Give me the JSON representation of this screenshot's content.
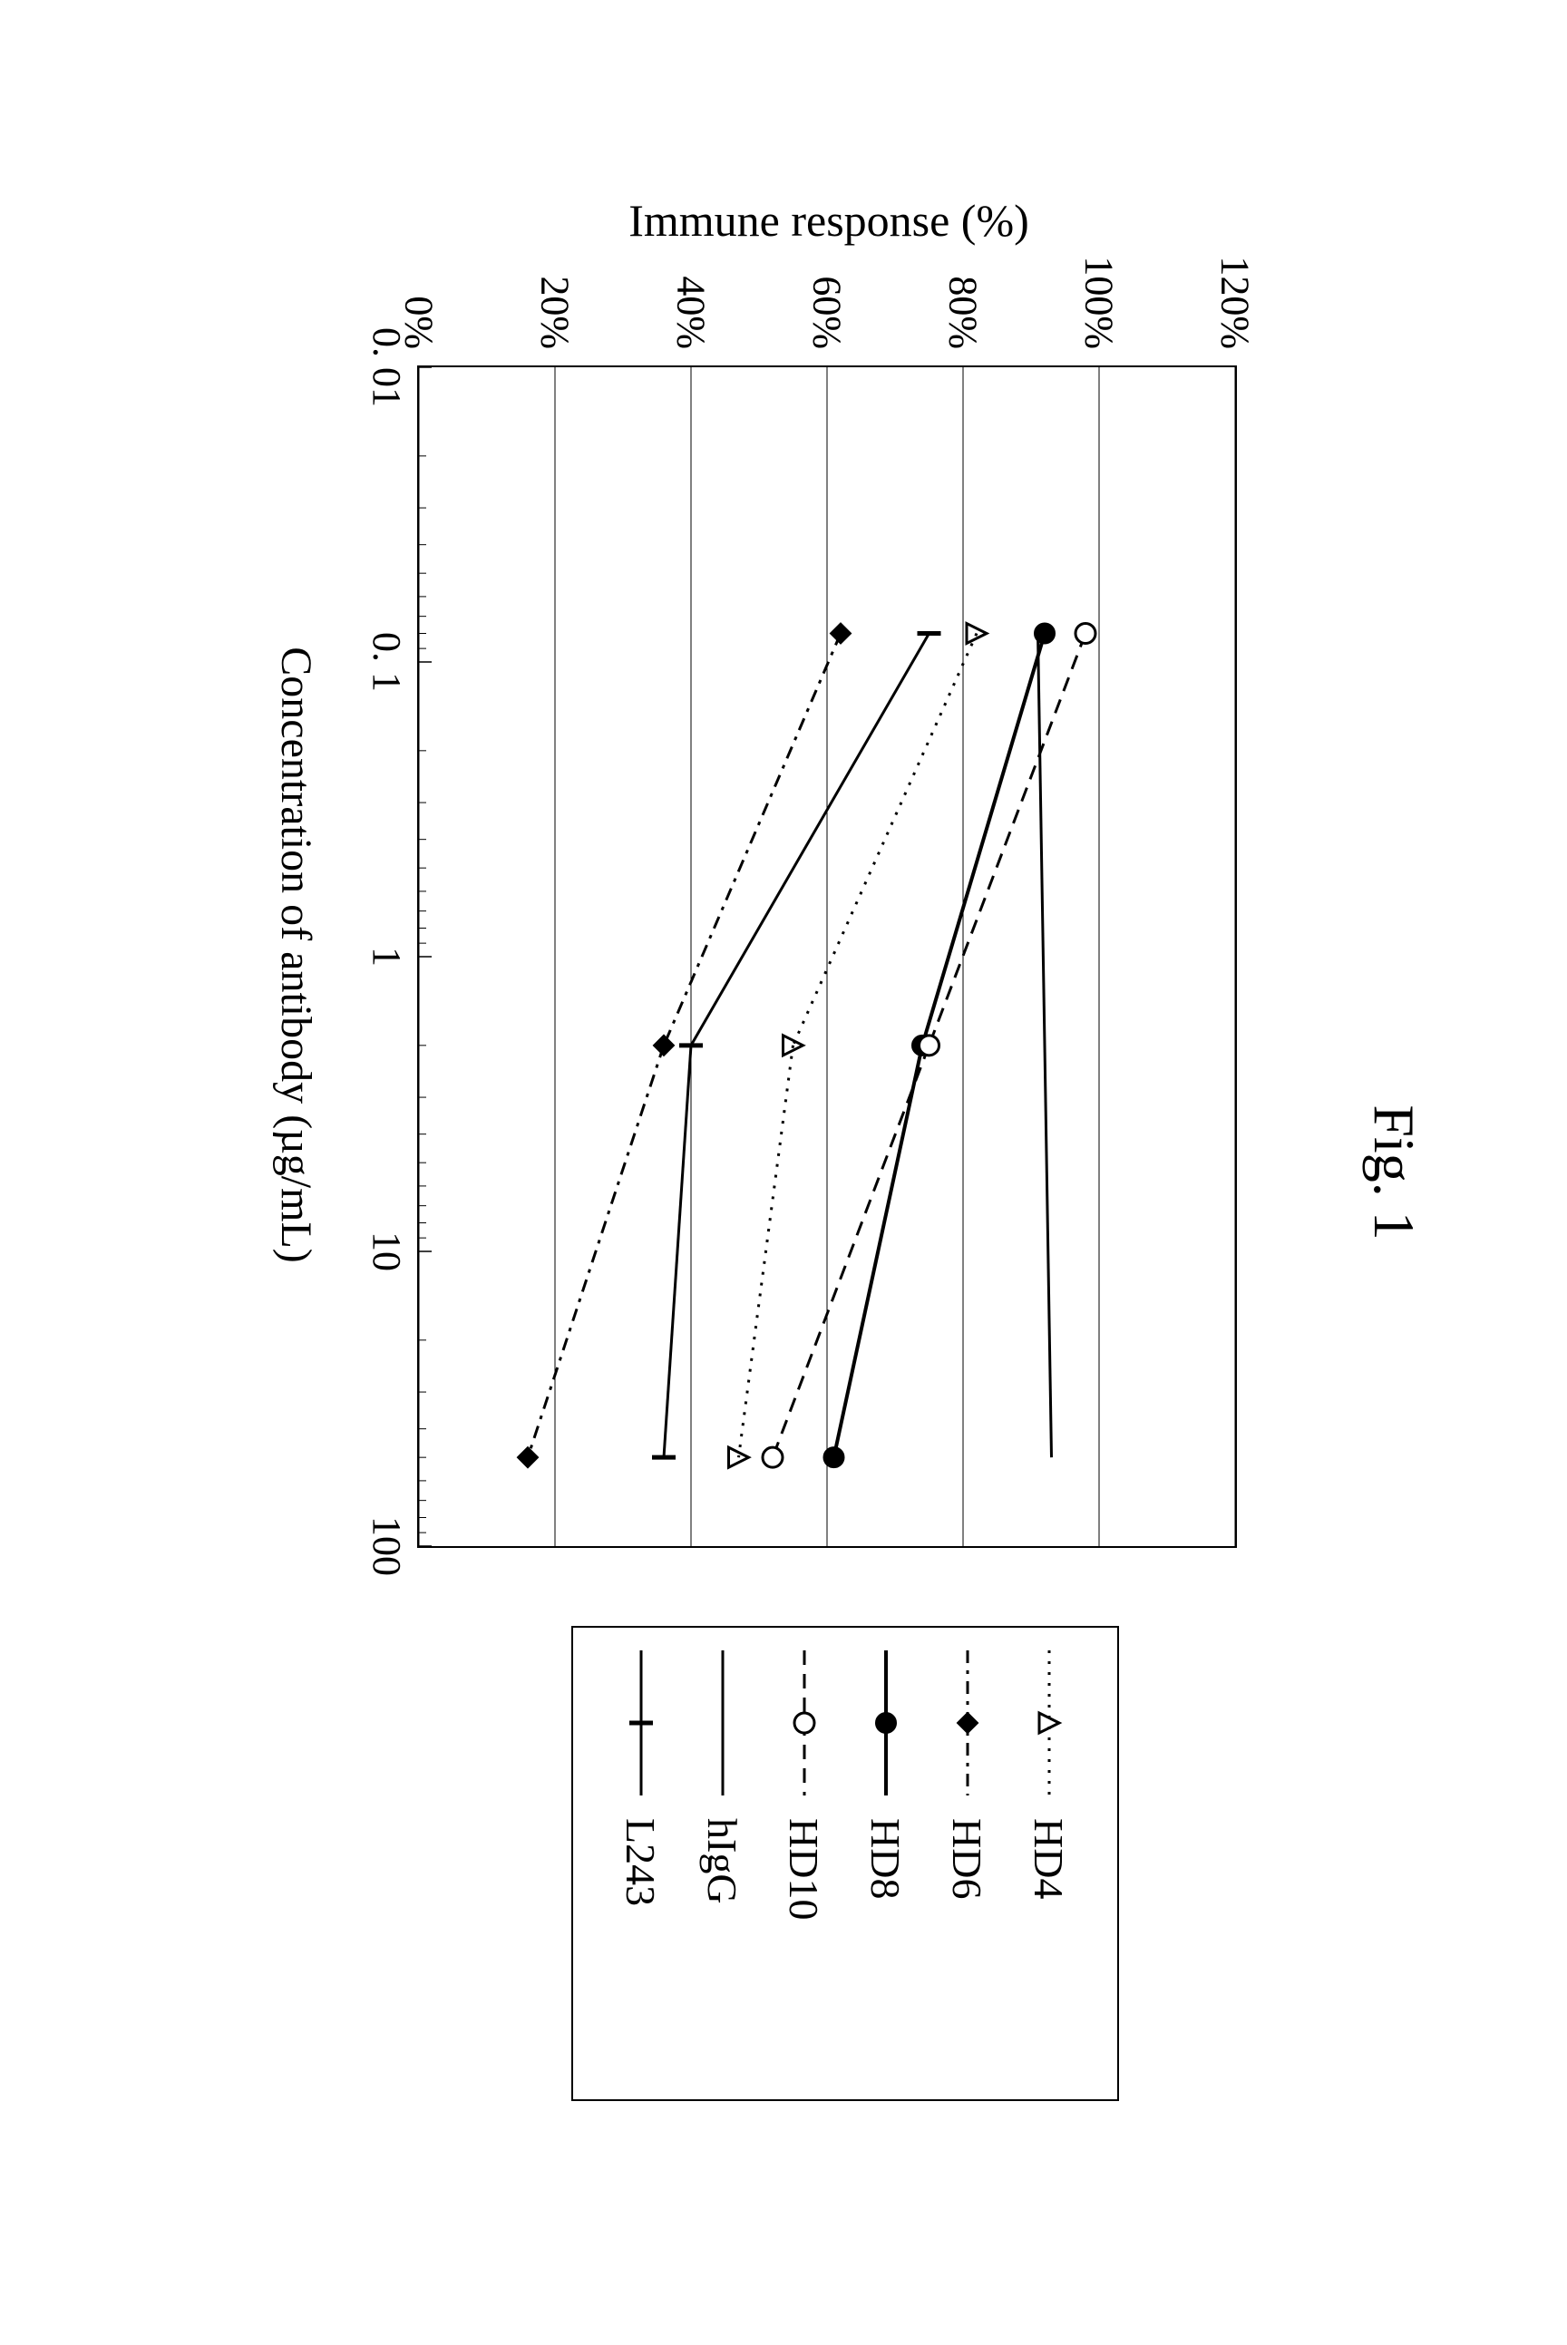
{
  "figure": {
    "title": "Fig. 1",
    "yAxis": {
      "title": "Immune response (%)",
      "min": 0,
      "max": 120,
      "ticks": [
        0,
        20,
        40,
        60,
        80,
        100,
        120
      ],
      "tickLabels": [
        "0%",
        "20%",
        "40%",
        "60%",
        "80%",
        "100%",
        "120%"
      ],
      "gridColor": "#000000",
      "gridWidth": 1
    },
    "xAxis": {
      "title": "Concentration of antibody (µg/mL)",
      "scale": "log",
      "min": 0.01,
      "max": 100,
      "decadeTicks": [
        0.01,
        0.1,
        1,
        10,
        100
      ],
      "decadeLabels": [
        "0. 01",
        "0. 1",
        "1",
        "10",
        "100"
      ],
      "minorPerDecade": [
        2,
        3,
        4,
        5,
        6,
        7,
        8,
        9
      ],
      "tickColor": "#000000",
      "majorTickLen": 14,
      "minorTickLen": 8
    },
    "plot": {
      "background": "#ffffff",
      "border": "#000000",
      "widthPx": 1300,
      "heightPx": 900
    },
    "series": [
      {
        "name": "HD4",
        "label": "HD4",
        "x": [
          0.08,
          2,
          50
        ],
        "y": [
          82,
          55,
          47
        ],
        "line": {
          "color": "#000000",
          "width": 3,
          "dash": "3 9"
        },
        "marker": {
          "type": "triangle-open",
          "size": 22,
          "stroke": "#000000",
          "strokeWidth": 3,
          "fill": "none"
        }
      },
      {
        "name": "HD6",
        "label": "HD6",
        "x": [
          0.08,
          2,
          50
        ],
        "y": [
          62,
          36,
          16
        ],
        "line": {
          "color": "#000000",
          "width": 3,
          "dash": "14 8 4 8"
        },
        "marker": {
          "type": "diamond",
          "size": 22,
          "stroke": "#000000",
          "strokeWidth": 2,
          "fill": "#000000"
        }
      },
      {
        "name": "HD8",
        "label": "HD8",
        "x": [
          0.08,
          2,
          50
        ],
        "y": [
          92,
          74,
          61
        ],
        "line": {
          "color": "#000000",
          "width": 4,
          "dash": "none"
        },
        "marker": {
          "type": "circle",
          "size": 22,
          "stroke": "#000000",
          "strokeWidth": 2,
          "fill": "#000000"
        }
      },
      {
        "name": "HD10",
        "label": "HD10",
        "x": [
          0.08,
          2,
          50
        ],
        "y": [
          98,
          75,
          52
        ],
        "line": {
          "color": "#000000",
          "width": 3,
          "dash": "16 10"
        },
        "marker": {
          "type": "circle-open",
          "size": 22,
          "stroke": "#000000",
          "strokeWidth": 3,
          "fill": "#ffffff"
        }
      },
      {
        "name": "hIgG",
        "label": "hIgG",
        "x": [
          0.08,
          50
        ],
        "y": [
          91,
          93
        ],
        "line": {
          "color": "#000000",
          "width": 3,
          "dash": "none"
        },
        "marker": {
          "type": "none"
        }
      },
      {
        "name": "L243",
        "label": "L243",
        "x": [
          0.08,
          2,
          50
        ],
        "y": [
          75,
          40,
          36
        ],
        "line": {
          "color": "#000000",
          "width": 3,
          "dash": "none"
        },
        "marker": {
          "type": "vtick",
          "size": 26,
          "stroke": "#000000",
          "strokeWidth": 5
        }
      }
    ],
    "legend": {
      "order": [
        "HD4",
        "HD6",
        "HD8",
        "HD10",
        "hIgG",
        "L243"
      ]
    }
  }
}
